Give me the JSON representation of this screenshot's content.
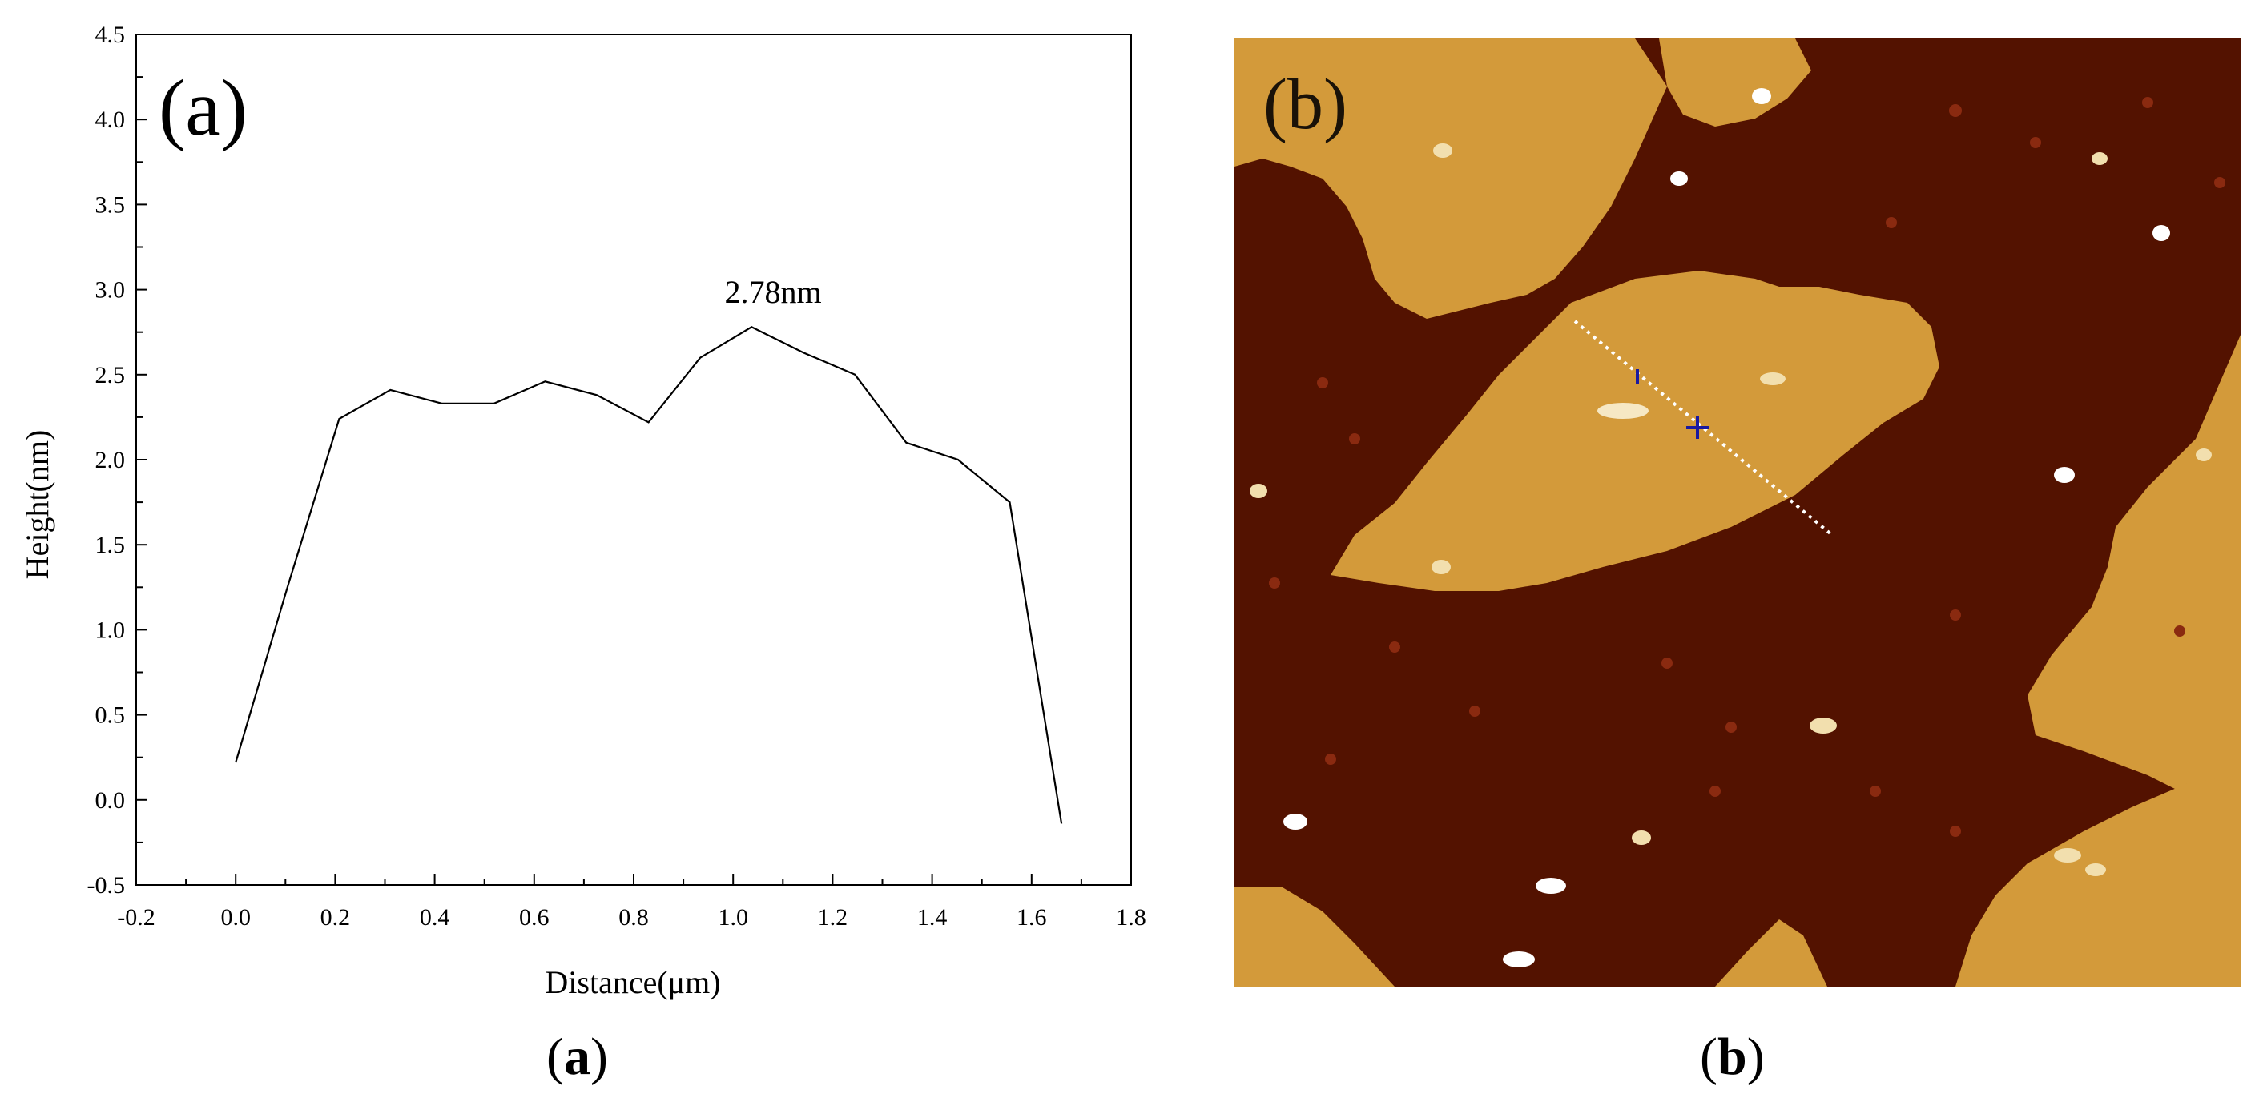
{
  "panel_a": {
    "panel_tag": "(a)",
    "caption_letter": "a",
    "annotation": "2.78nm"
  },
  "panel_b": {
    "panel_tag": "(b)",
    "caption_letter": "b"
  },
  "chart_data": {
    "type": "line",
    "title": "",
    "xlabel": "Distance(μm)",
    "ylabel": "Height(nm)",
    "xlim": [
      -0.2,
      1.8
    ],
    "ylim": [
      -0.5,
      4.5
    ],
    "xticks": [
      -0.2,
      0.0,
      0.2,
      0.4,
      0.6,
      0.8,
      1.0,
      1.2,
      1.4,
      1.6,
      1.8
    ],
    "xtick_labels": [
      "-0.2",
      "0.0",
      "0.2",
      "0.4",
      "0.6",
      "0.8",
      "1.0",
      "1.2",
      "1.4",
      "1.6",
      "1.8"
    ],
    "yticks": [
      -0.5,
      0.0,
      0.5,
      1.0,
      1.5,
      2.0,
      2.5,
      3.0,
      3.5,
      4.0,
      4.5
    ],
    "ytick_labels": [
      "-0.5",
      "0.0",
      "0.5",
      "1.0",
      "1.5",
      "2.0",
      "2.5",
      "3.0",
      "3.5",
      "4.0",
      "4.5"
    ],
    "grid": false,
    "series": [
      {
        "x": [
          0.0,
          0.104,
          0.208,
          0.311,
          0.415,
          0.519,
          0.622,
          0.726,
          0.83,
          0.934,
          1.037,
          1.141,
          1.245,
          1.348,
          1.452,
          1.556,
          1.66
        ],
        "y": [
          0.22,
          1.25,
          2.24,
          2.41,
          2.33,
          2.33,
          2.46,
          2.38,
          2.22,
          2.6,
          2.78,
          2.63,
          2.5,
          2.1,
          2.0,
          1.75,
          -0.14
        ]
      }
    ],
    "annotations": [
      {
        "text": "2.78nm",
        "x": 1.037,
        "y": 2.78
      }
    ],
    "colors": {
      "line": "#000000"
    }
  },
  "afm_image": {
    "colors": {
      "dark": "#531200",
      "light": "#d39a3a",
      "bright": "#f2dfae",
      "profile_line": "#ffffff",
      "cursor": "#1a1aa0"
    }
  }
}
